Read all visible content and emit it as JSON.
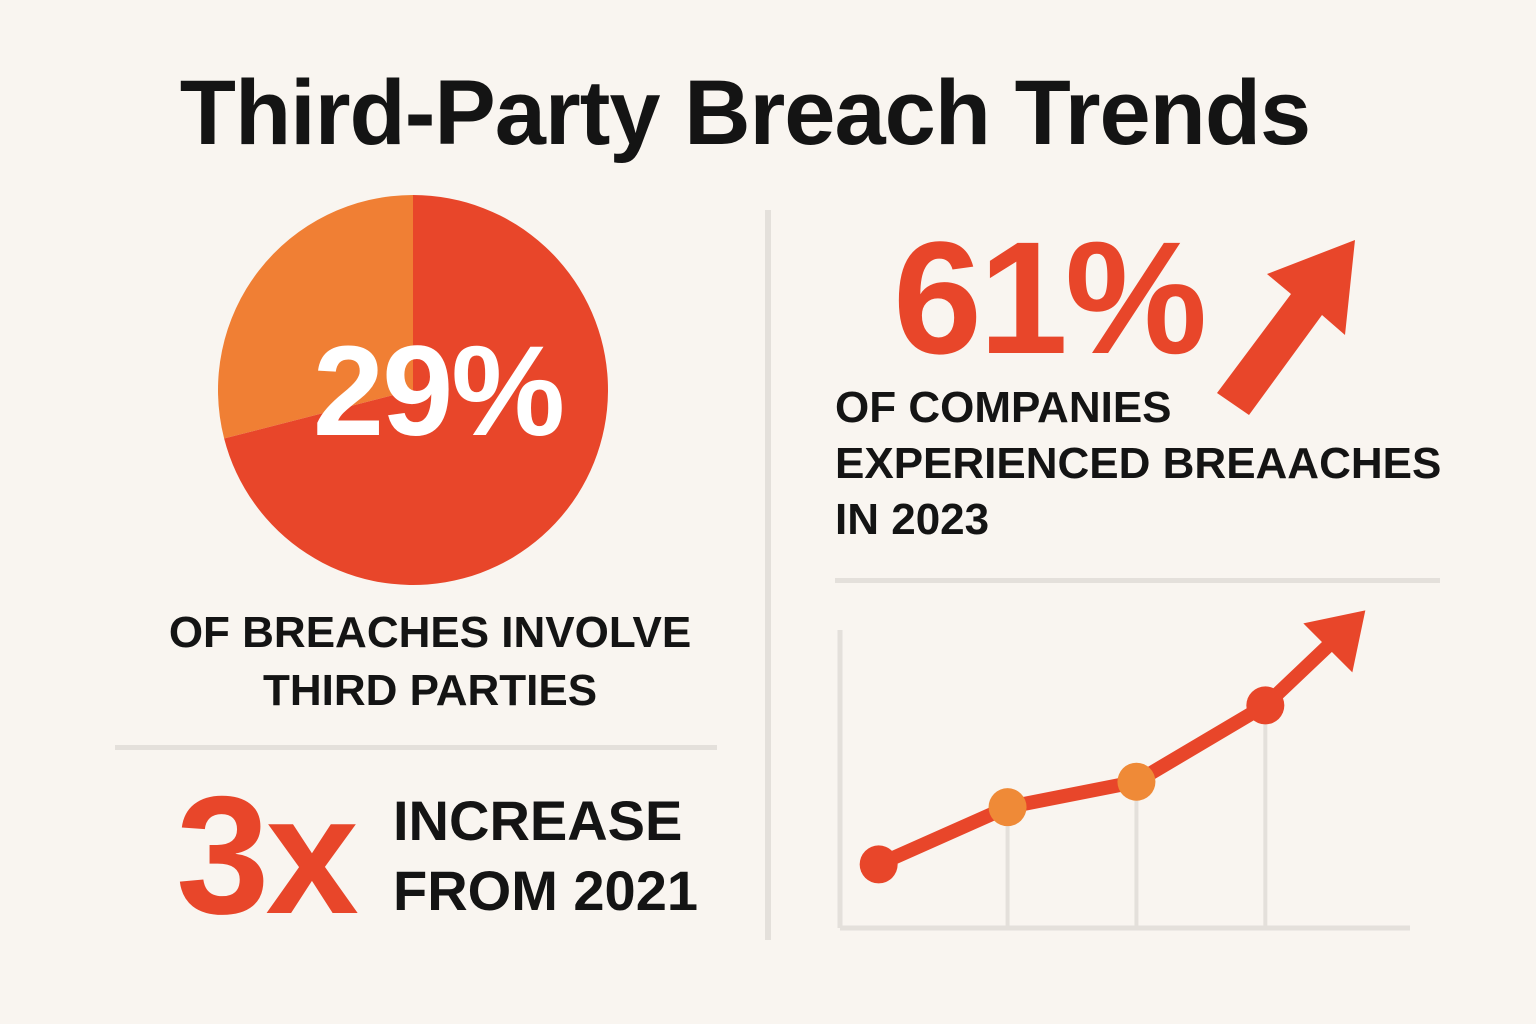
{
  "title": "Third-Party Breach Trends",
  "colors": {
    "background": "#f9f5f0",
    "primary_orange_red": "#e8462a",
    "light_orange": "#f07f34",
    "dot_orange": "#ef8a37",
    "text_dark": "#141414",
    "divider": "#e4e0db"
  },
  "left_panel": {
    "pie_value": "29%",
    "pie_caption": [
      "OF BREACHES INVOLVE",
      "THIRD PARTIES"
    ],
    "increase_value": "3x",
    "increase_caption": [
      "INCREASE",
      "FROM 2021"
    ]
  },
  "right_panel": {
    "stat_value": "61%",
    "stat_caption": [
      "OF COMPANIES",
      "EXPERIENCED BREAACHES",
      "IN 2023"
    ],
    "trend_arrow_icon": "arrow-up-right-icon"
  },
  "chart_data": [
    {
      "type": "pie",
      "slices": [
        {
          "value": 29,
          "color": "#f07f34"
        },
        {
          "value": 71,
          "color": "#e8462a"
        }
      ]
    },
    {
      "type": "line",
      "x": [
        1,
        2,
        3,
        4
      ],
      "values": [
        1.0,
        1.9,
        2.3,
        3.5
      ],
      "ylim": [
        0,
        5
      ],
      "xlim": [
        0.7,
        5.2
      ],
      "marker_colors": [
        "#e8462a",
        "#ef8a37",
        "#ef8a37",
        "#e8462a"
      ],
      "trend_arrow": true,
      "grid": "vertical-guides"
    }
  ]
}
